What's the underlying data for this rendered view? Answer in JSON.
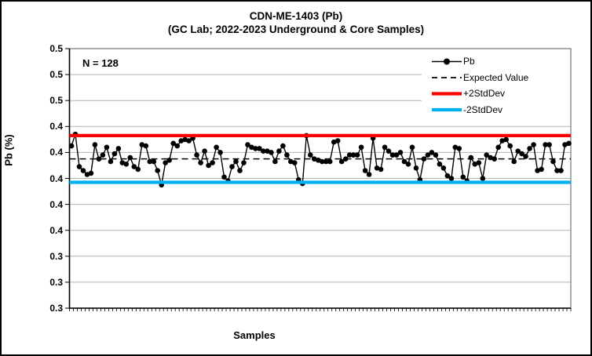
{
  "chart_data": {
    "type": "line",
    "title": "CDN-ME-1403 (Pb)",
    "subtitle": "(GC Lab; 2022-2023 Underground & Core Samples)",
    "annotation": "N = 128",
    "xlabel": "Samples",
    "ylabel": "Pb (%)",
    "ylim": [
      0.3,
      0.5
    ],
    "ytick_step": 0.02,
    "ytick_labels": [
      "0.5",
      "0.5",
      "0.5",
      "0.4",
      "0.4",
      "0.4",
      "0.4",
      "0.4",
      "0.3",
      "0.3",
      "0.3"
    ],
    "grid": true,
    "legend_position": "top-right-inside",
    "x_is_sample_index": true,
    "n_samples": 128,
    "series": [
      {
        "name": "Pb",
        "kind": "line-markers",
        "color": "#000000",
        "values": [
          0.425,
          0.434,
          0.409,
          0.406,
          0.403,
          0.404,
          0.426,
          0.415,
          0.418,
          0.424,
          0.413,
          0.419,
          0.423,
          0.412,
          0.411,
          0.416,
          0.409,
          0.407,
          0.426,
          0.425,
          0.413,
          0.413,
          0.406,
          0.395,
          0.412,
          0.414,
          0.427,
          0.425,
          0.429,
          0.43,
          0.429,
          0.431,
          0.418,
          0.412,
          0.421,
          0.41,
          0.412,
          0.424,
          0.42,
          0.401,
          0.398,
          0.409,
          0.413,
          0.406,
          0.412,
          0.426,
          0.424,
          0.423,
          0.423,
          0.421,
          0.421,
          0.42,
          0.413,
          0.421,
          0.425,
          0.418,
          0.413,
          0.412,
          0.399,
          0.396,
          0.433,
          0.418,
          0.415,
          0.414,
          0.413,
          0.413,
          0.413,
          0.428,
          0.429,
          0.413,
          0.415,
          0.418,
          0.418,
          0.418,
          0.424,
          0.406,
          0.403,
          0.431,
          0.408,
          0.407,
          0.424,
          0.421,
          0.418,
          0.418,
          0.42,
          0.413,
          0.411,
          0.424,
          0.408,
          0.399,
          0.415,
          0.418,
          0.42,
          0.418,
          0.411,
          0.408,
          0.402,
          0.4,
          0.424,
          0.423,
          0.401,
          0.398,
          0.416,
          0.411,
          0.412,
          0.4,
          0.418,
          0.416,
          0.415,
          0.424,
          0.429,
          0.43,
          0.425,
          0.413,
          0.421,
          0.419,
          0.417,
          0.423,
          0.426,
          0.406,
          0.407,
          0.426,
          0.426,
          0.413,
          0.406,
          0.406,
          0.426,
          0.427
        ]
      },
      {
        "name": "Expected Value",
        "kind": "hline-dashed",
        "color": "#000000",
        "value": 0.415
      },
      {
        "name": "+2StdDev",
        "kind": "hline",
        "color": "#FF0000",
        "value": 0.433
      },
      {
        "name": "-2StdDev",
        "kind": "hline",
        "color": "#00B0F0",
        "value": 0.397
      }
    ],
    "style": {
      "gridline_color": "#B3B3B3",
      "plot_border_color": "#808080",
      "axis_color": "#000000",
      "legend_bg": "#FFFFFF"
    }
  }
}
